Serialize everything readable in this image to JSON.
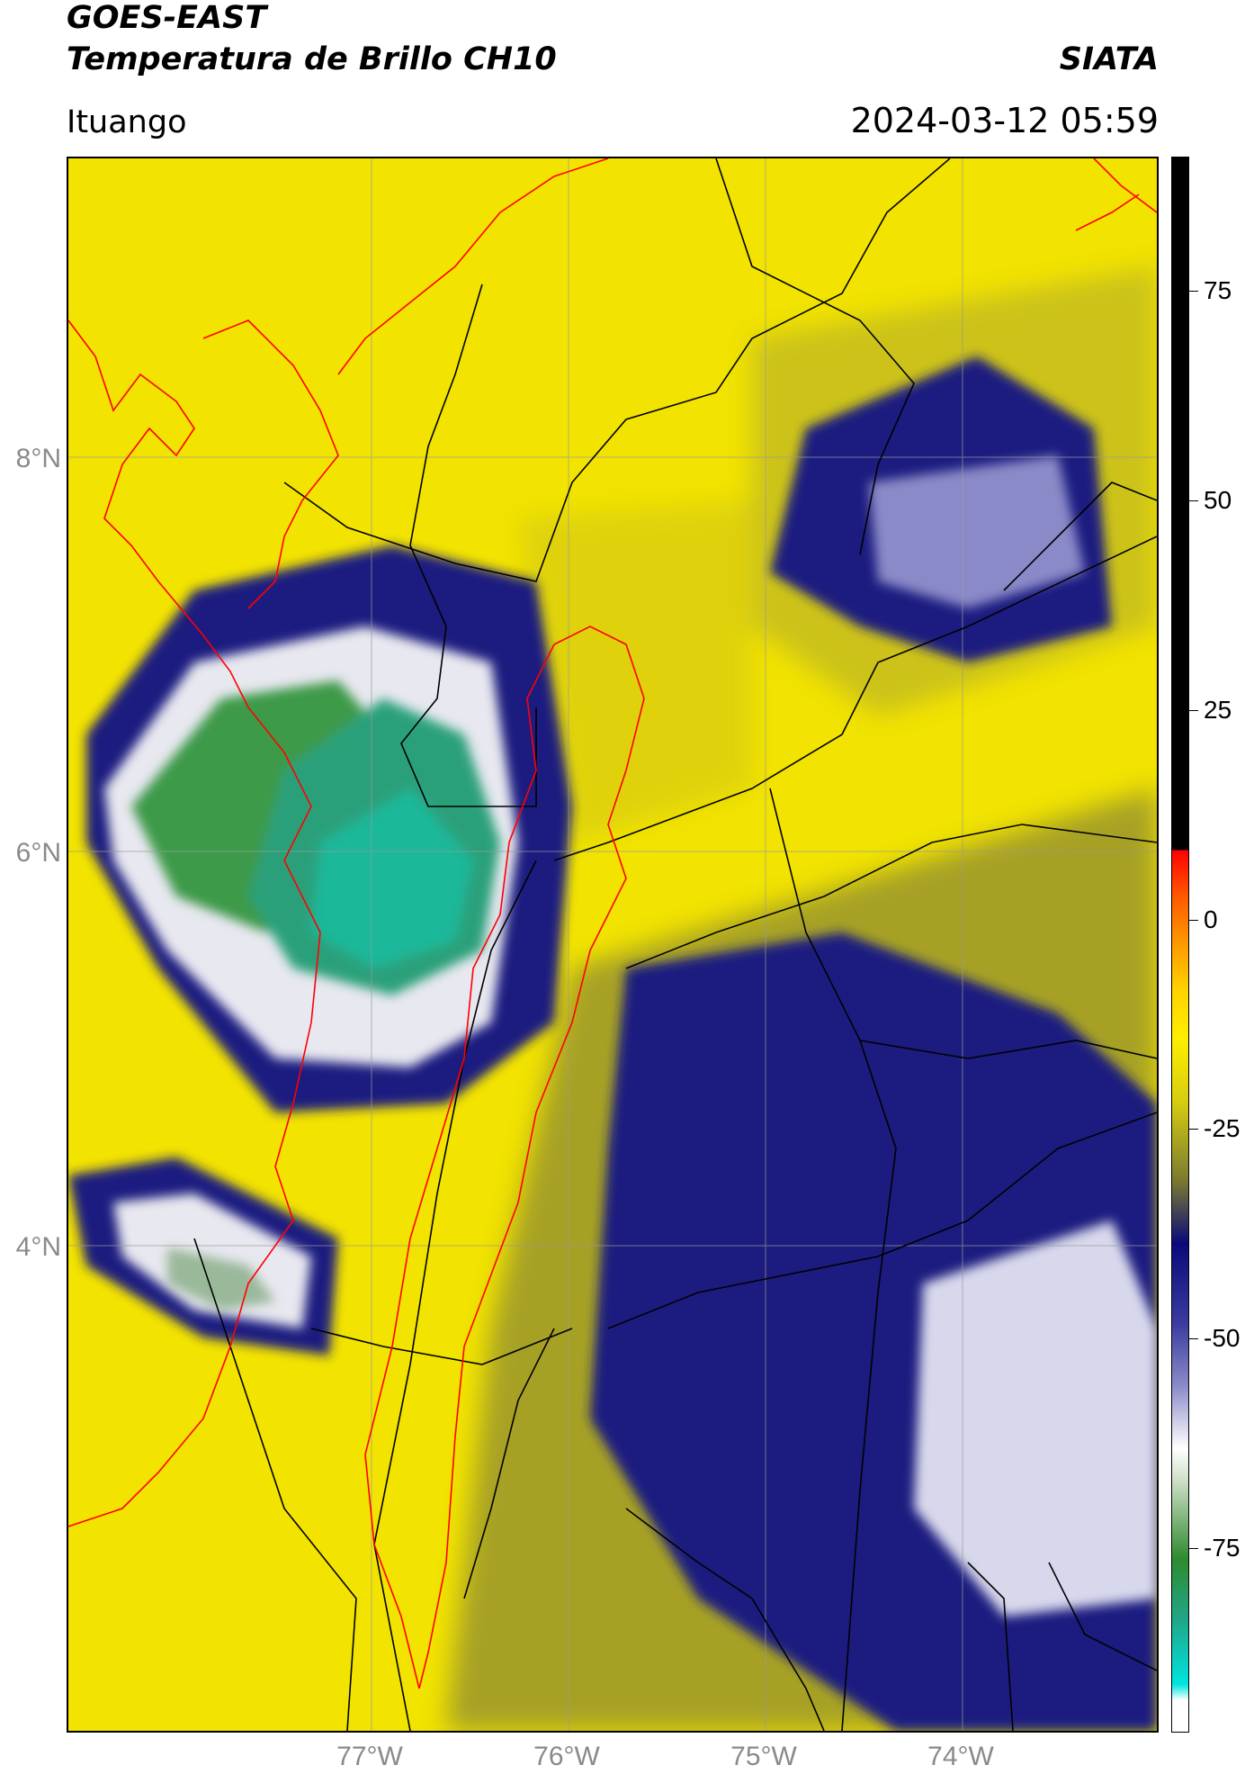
{
  "header": {
    "satellite": "GOES-EAST",
    "product": "Temperatura de Brillo CH10",
    "brand": "SIATA",
    "region": "Ituango",
    "datetime": "2024-03-12 05:59"
  },
  "axes": {
    "lat_labels": [
      "8°N",
      "6°N",
      "4°N"
    ],
    "lon_labels": [
      "77°W",
      "76°W",
      "75°W",
      "74°W"
    ]
  },
  "colorbar": {
    "tick_labels": [
      "75",
      "50",
      "25",
      "0",
      "-25",
      "-50",
      "-75"
    ],
    "tick_values": [
      75,
      50,
      25,
      0,
      -25,
      -50,
      -75
    ],
    "range": [
      -97,
      91
    ],
    "colors": {
      "warm_black": "#000000",
      "red": "#ff0000",
      "orange": "#ff8c00",
      "yellow": "#ffee00",
      "olive": "#7a7a30",
      "navy": "#0a0a7a",
      "white": "#ffffff",
      "green": "#2f8a2f",
      "cyan": "#00e5e0"
    }
  },
  "map_colors": {
    "background_yellow": "#f2e300",
    "cold_navy": "#1a1a80",
    "cloud_white": "#e8e8f0",
    "green_core": "#3e9a4a",
    "teal_core": "#1fb89a",
    "olive_haze": "#9e9a2a",
    "borders_black": "#000000",
    "coast_red": "#ff0000"
  }
}
